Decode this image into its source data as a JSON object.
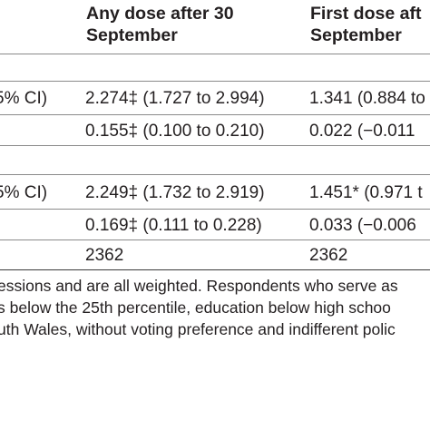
{
  "header": {
    "col1": [
      "Any dose after 30",
      "September"
    ],
    "col2": [
      "First dose aft",
      "September"
    ]
  },
  "rows": [
    {
      "label": "5% CI)",
      "c1": "2.274‡ (1.727 to 2.994)",
      "c2": "1.341 (0.884 to"
    },
    {
      "label": "",
      "c1": "0.155‡ (0.100 to 0.210)",
      "c2": "0.022 (−0.011"
    },
    {
      "label": "5% CI)",
      "c1": "2.249‡ (1.732 to 2.919)",
      "c2": "1.451* (0.971 t"
    },
    {
      "label": "",
      "c1": "0.169‡ (0.111 to 0.228)",
      "c2": "0.033 (−0.006"
    },
    {
      "label": "",
      "c1": "2362",
      "c2": "2362"
    }
  ],
  "notes": [
    "essions and are all weighted. Respondents who serve as",
    "s below the 25th percentile, education below high schoo",
    "uth Wales, without voting preference and indifferent polic"
  ]
}
